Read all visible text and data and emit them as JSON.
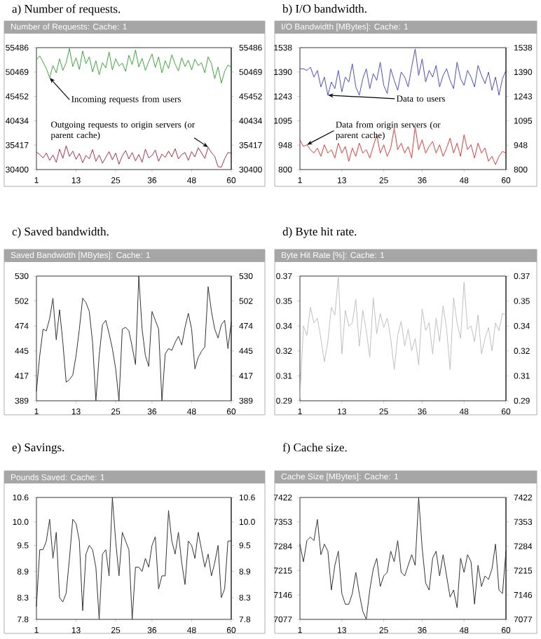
{
  "chart_data": [
    {
      "type": "line",
      "title": "a)   Number of requests.",
      "subtitle": "Number of Requests: Cache: 1",
      "marker": "none",
      "x": [
        1,
        2,
        3,
        4,
        5,
        6,
        7,
        8,
        9,
        10,
        11,
        12,
        13,
        14,
        15,
        16,
        17,
        18,
        19,
        20,
        21,
        22,
        23,
        24,
        25,
        26,
        27,
        28,
        29,
        30,
        31,
        32,
        33,
        34,
        35,
        36,
        37,
        38,
        39,
        40,
        41,
        42,
        43,
        44,
        45,
        46,
        47,
        48,
        49,
        50,
        51,
        52,
        53,
        54,
        55,
        56,
        57,
        58,
        59,
        60
      ],
      "series": [
        {
          "name": "Incoming requests from users",
          "color": "#3fa63f",
          "values": [
            53000,
            53800,
            52500,
            51200,
            49300,
            51800,
            50300,
            53200,
            50800,
            52400,
            55300,
            51600,
            53400,
            51000,
            54800,
            52200,
            53600,
            50500,
            52800,
            49900,
            52400,
            51300,
            54600,
            50900,
            53200,
            51700,
            52300,
            50600,
            53900,
            52000,
            55000,
            51500,
            53300,
            50800,
            52600,
            54200,
            51400,
            53600,
            50300,
            52800,
            51200,
            54000,
            52100,
            50700,
            53400,
            51600,
            52900,
            50900,
            53100,
            51800,
            52400,
            50300,
            53600,
            52200,
            49100,
            51500,
            48200,
            50600,
            51900,
            51500
          ]
        },
        {
          "name": "Outgoing requests to origin servers (or parent cache)",
          "color": "#a83246",
          "values": [
            34000,
            33500,
            32800,
            33800,
            32300,
            33400,
            31900,
            34600,
            32700,
            35300,
            33100,
            34200,
            32500,
            33700,
            31800,
            33300,
            32600,
            34500,
            32100,
            33400,
            31700,
            32900,
            34100,
            32400,
            33800,
            31500,
            33200,
            34300,
            32600,
            33900,
            32200,
            33500,
            31900,
            34600,
            32800,
            33300,
            34400,
            32100,
            33600,
            32900,
            34200,
            33000,
            34700,
            32600,
            33500,
            33900,
            32300,
            34100,
            33000,
            34900,
            33800,
            32700,
            35000,
            33900,
            33100,
            31000,
            30900,
            32600,
            33900,
            33800
          ]
        }
      ],
      "xlim": [
        1,
        60
      ],
      "xticks": [
        1,
        13,
        25,
        36,
        48,
        60
      ],
      "ylim": [
        30400,
        55486
      ],
      "yticks": [
        30400,
        35417,
        40434,
        45452,
        50469,
        55486
      ],
      "y2lim": [
        30400,
        55486
      ],
      "y2ticks": [
        30400,
        35417,
        40434,
        45452,
        50469,
        55486
      ]
    },
    {
      "type": "line",
      "title": "b)   I/O bandwidth.",
      "subtitle": "I/O Bandwidth [MBytes]: Cache: 1",
      "marker": "none",
      "x": [
        1,
        2,
        3,
        4,
        5,
        6,
        7,
        8,
        9,
        10,
        11,
        12,
        13,
        14,
        15,
        16,
        17,
        18,
        19,
        20,
        21,
        22,
        23,
        24,
        25,
        26,
        27,
        28,
        29,
        30,
        31,
        32,
        33,
        34,
        35,
        36,
        37,
        38,
        39,
        40,
        41,
        42,
        43,
        44,
        45,
        46,
        47,
        48,
        49,
        50,
        51,
        52,
        53,
        54,
        55,
        56,
        57,
        58,
        59,
        60
      ],
      "series": [
        {
          "name": "Data to users",
          "color": "#4a4ad8",
          "values": [
            1410,
            1410,
            1400,
            1420,
            1360,
            1400,
            1300,
            1360,
            1250,
            1330,
            1290,
            1400,
            1270,
            1360,
            1330,
            1440,
            1300,
            1250,
            1350,
            1410,
            1290,
            1380,
            1340,
            1450,
            1310,
            1260,
            1410,
            1340,
            1280,
            1390,
            1360,
            1300,
            1420,
            1530,
            1370,
            1470,
            1330,
            1400,
            1360,
            1430,
            1300,
            1370,
            1410,
            1340,
            1290,
            1450,
            1350,
            1310,
            1400,
            1360,
            1300,
            1430,
            1370,
            1320,
            1390,
            1280,
            1360,
            1250,
            1350,
            1400
          ]
        },
        {
          "name": "Data from origin servers (or parent cache)",
          "color": "#e83a3a",
          "values": [
            980,
            940,
            950,
            920,
            900,
            930,
            880,
            950,
            900,
            920,
            870,
            960,
            900,
            940,
            850,
            930,
            880,
            960,
            900,
            920,
            870,
            940,
            1010,
            900,
            950,
            880,
            930,
            1050,
            920,
            960,
            900,
            940,
            870,
            1060,
            920,
            980,
            900,
            940,
            970,
            900,
            950,
            880,
            930,
            990,
            900,
            960,
            880,
            1010,
            920,
            950,
            870,
            960,
            900,
            930,
            850,
            880,
            830,
            880,
            910,
            900
          ]
        }
      ],
      "xlim": [
        1,
        60
      ],
      "xticks": [
        1,
        13,
        25,
        36,
        48,
        60
      ],
      "ylim": [
        800,
        1538
      ],
      "yticks": [
        800,
        {
          "value": 947.6,
          "label": "948"
        },
        {
          "value": 1095.2,
          "label": "1095"
        },
        {
          "value": 1242.8,
          "label": "1243"
        },
        {
          "value": 1390.4,
          "label": "1390"
        },
        1538
      ],
      "y2lim": [
        800,
        1538
      ],
      "y2ticks": [
        800,
        {
          "value": 947.6,
          "label": "948"
        },
        {
          "value": 1095.2,
          "label": "1095"
        },
        {
          "value": 1242.8,
          "label": "1243"
        },
        {
          "value": 1390.4,
          "label": "1390"
        },
        1538
      ]
    },
    {
      "type": "line",
      "title": "c)   Saved bandwidth.",
      "subtitle": "Saved Bandwidth [MBytes]: Cache: 1",
      "marker": "none",
      "x": [
        1,
        2,
        3,
        4,
        5,
        6,
        7,
        8,
        9,
        10,
        11,
        12,
        13,
        14,
        15,
        16,
        17,
        18,
        19,
        20,
        21,
        22,
        23,
        24,
        25,
        26,
        27,
        28,
        29,
        30,
        31,
        32,
        33,
        34,
        35,
        36,
        37,
        38,
        39,
        40,
        41,
        42,
        43,
        44,
        45,
        46,
        47,
        48,
        49,
        50,
        51,
        52,
        53,
        54,
        55,
        56,
        57,
        58,
        59,
        60
      ],
      "series": [
        {
          "color": "#333333",
          "values": [
            400,
            440,
            470,
            468,
            482,
            505,
            458,
            492,
            455,
            410,
            413,
            418,
            440,
            470,
            505,
            500,
            490,
            455,
            389,
            440,
            475,
            480,
            465,
            448,
            425,
            389,
            470,
            472,
            468,
            450,
            430,
            530,
            470,
            440,
            428,
            490,
            480,
            470,
            389,
            442,
            448,
            446,
            455,
            462,
            452,
            472,
            488,
            470,
            425,
            438,
            445,
            450,
            518,
            490,
            470,
            460,
            475,
            480,
            448,
            478
          ]
        }
      ],
      "xlim": [
        1,
        60
      ],
      "xticks": [
        1,
        13,
        25,
        36,
        48,
        60
      ],
      "ylim": [
        389,
        530
      ],
      "yticks": [
        389,
        {
          "value": 417.2,
          "label": "417"
        },
        {
          "value": 445.4,
          "label": "445"
        },
        {
          "value": 473.6,
          "label": "474"
        },
        {
          "value": 501.8,
          "label": "502"
        },
        530
      ],
      "y2lim": [
        389,
        530
      ],
      "y2ticks": [
        389,
        {
          "value": 417.2,
          "label": "417"
        },
        {
          "value": 445.4,
          "label": "445"
        },
        {
          "value": 473.6,
          "label": "474"
        },
        {
          "value": 501.8,
          "label": "502"
        },
        530
      ]
    },
    {
      "type": "line",
      "title": "d)   Byte hit rate.",
      "subtitle": "Byte Hit Rate [%]: Cache: 1",
      "marker": "none",
      "x": [
        1,
        2,
        3,
        4,
        5,
        6,
        7,
        8,
        9,
        10,
        11,
        12,
        13,
        14,
        15,
        16,
        17,
        18,
        19,
        20,
        21,
        22,
        23,
        24,
        25,
        26,
        27,
        28,
        29,
        30,
        31,
        32,
        33,
        34,
        35,
        36,
        37,
        38,
        39,
        40,
        41,
        42,
        43,
        44,
        45,
        46,
        47,
        48,
        49,
        50,
        51,
        52,
        53,
        54,
        55,
        56,
        57,
        58,
        59,
        60
      ],
      "series": [
        {
          "color": "#c0c0c0",
          "values": [
            0.292,
            0.338,
            0.332,
            0.35,
            0.34,
            0.343,
            0.33,
            0.315,
            0.328,
            0.35,
            0.345,
            0.37,
            0.32,
            0.348,
            0.338,
            0.34,
            0.355,
            0.325,
            0.348,
            0.335,
            0.318,
            0.356,
            0.333,
            0.346,
            0.337,
            0.343,
            0.33,
            0.31,
            0.332,
            0.341,
            0.325,
            0.336,
            0.322,
            0.33,
            0.313,
            0.349,
            0.335,
            0.34,
            0.32,
            0.343,
            0.328,
            0.351,
            0.336,
            0.31,
            0.356,
            0.34,
            0.33,
            0.366,
            0.336,
            0.338,
            0.328,
            0.345,
            0.32,
            0.33,
            0.337,
            0.322,
            0.34,
            0.335,
            0.346,
            0.345
          ]
        }
      ],
      "xlim": [
        1,
        60
      ],
      "xticks": [
        1,
        13,
        25,
        36,
        48,
        60
      ],
      "ylim": [
        0.29,
        0.37
      ],
      "yticks": [
        0.29,
        {
          "value": 0.306,
          "label": "0.31"
        },
        {
          "value": 0.322,
          "label": "0.32"
        },
        {
          "value": 0.338,
          "label": "0.34"
        },
        {
          "value": 0.354,
          "label": "0.35"
        },
        0.37
      ],
      "y2lim": [
        0.29,
        0.37
      ],
      "y2ticks": [
        0.29,
        {
          "value": 0.306,
          "label": "0.31"
        },
        {
          "value": 0.322,
          "label": "0.32"
        },
        {
          "value": 0.338,
          "label": "0.34"
        },
        {
          "value": 0.354,
          "label": "0.35"
        },
        0.37
      ]
    },
    {
      "type": "line",
      "title": "e)   Savings.",
      "subtitle": "Pounds Saved: Cache: 1",
      "marker": "none",
      "x": [
        1,
        2,
        3,
        4,
        5,
        6,
        7,
        8,
        9,
        10,
        11,
        12,
        13,
        14,
        15,
        16,
        17,
        18,
        19,
        20,
        21,
        22,
        23,
        24,
        25,
        26,
        27,
        28,
        29,
        30,
        31,
        32,
        33,
        34,
        35,
        36,
        37,
        38,
        39,
        40,
        41,
        42,
        43,
        44,
        45,
        46,
        47,
        48,
        49,
        50,
        51,
        52,
        53,
        54,
        55,
        56,
        57,
        58,
        59,
        60
      ],
      "series": [
        {
          "color": "#333333",
          "values": [
            8.1,
            9.4,
            9.4,
            9.6,
            10.1,
            9.2,
            9.8,
            8.3,
            8.2,
            8.4,
            9.2,
            10.1,
            10.0,
            9.6,
            8.0,
            9.3,
            9.5,
            9.4,
            9.0,
            7.8,
            9.3,
            9.4,
            8.8,
            10.6,
            9.6,
            8.8,
            9.8,
            9.6,
            9.4,
            7.8,
            9.0,
            9.0,
            8.9,
            9.2,
            9.0,
            9.5,
            9.7,
            8.5,
            8.8,
            8.8,
            10.3,
            9.6,
            9.3,
            9.8,
            9.1,
            8.6,
            9.6,
            9.5,
            9.2,
            9.8,
            9.4,
            9.0,
            9.3,
            8.8,
            9.1,
            9.5,
            8.3,
            8.5,
            9.6,
            9.6
          ]
        }
      ],
      "xlim": [
        1,
        60
      ],
      "xticks": [
        1,
        13,
        25,
        36,
        48,
        60
      ],
      "ylim": [
        7.8,
        10.6
      ],
      "yticks": [
        7.8,
        8.3,
        8.9,
        9.5,
        {
          "value": 10.04,
          "label": "10.0"
        },
        10.6
      ],
      "y2lim": [
        7.8,
        10.6
      ],
      "y2ticks": [
        7.8,
        8.3,
        8.9,
        9.5,
        {
          "value": 10.04,
          "label": "10.0"
        },
        10.6
      ]
    },
    {
      "type": "line",
      "title": "f)   Cache size.",
      "subtitle": "Cache Size [MBytes]: Cache: 1",
      "marker": "none",
      "x": [
        1,
        2,
        3,
        4,
        5,
        6,
        7,
        8,
        9,
        10,
        11,
        12,
        13,
        14,
        15,
        16,
        17,
        18,
        19,
        20,
        21,
        22,
        23,
        24,
        25,
        26,
        27,
        28,
        29,
        30,
        31,
        32,
        33,
        34,
        35,
        36,
        37,
        38,
        39,
        40,
        41,
        42,
        43,
        44,
        45,
        46,
        47,
        48,
        49,
        50,
        51,
        52,
        53,
        54,
        55,
        56,
        57,
        58,
        59,
        60
      ],
      "series": [
        {
          "color": "#333333",
          "values": [
            7290,
            7240,
            7300,
            7310,
            7300,
            7360,
            7260,
            7290,
            7270,
            7160,
            7230,
            7270,
            7150,
            7120,
            7120,
            7150,
            7210,
            7150,
            7100,
            7077,
            7160,
            7220,
            7250,
            7170,
            7200,
            7210,
            7270,
            7240,
            7300,
            7210,
            7200,
            7230,
            7260,
            7230,
            7422,
            7280,
            7180,
            7160,
            7250,
            7270,
            7200,
            7260,
            7200,
            7140,
            7160,
            7110,
            7250,
            7210,
            7260,
            7240,
            7120,
            7230,
            7170,
            7200,
            7190,
            7220,
            7290,
            7160,
            7150,
            7270
          ]
        }
      ],
      "xlim": [
        1,
        60
      ],
      "xticks": [
        1,
        13,
        25,
        36,
        48,
        60
      ],
      "ylim": [
        7077,
        7422
      ],
      "yticks": [
        7077,
        7146,
        7215,
        7284,
        7353,
        7422
      ],
      "y2lim": [
        7077,
        7422
      ],
      "y2ticks": [
        7077,
        7146,
        7215,
        7284,
        7353,
        7422
      ]
    }
  ]
}
